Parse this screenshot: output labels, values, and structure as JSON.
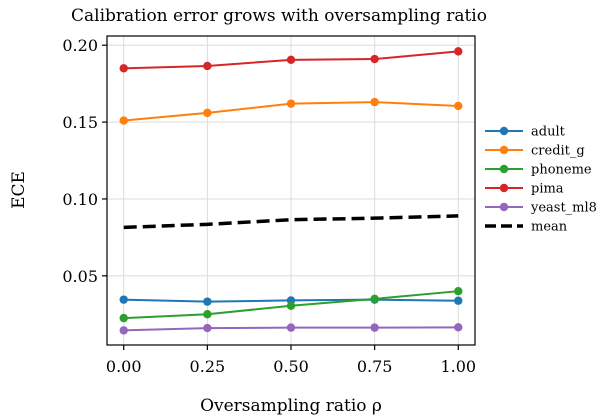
{
  "chart_data": {
    "type": "line",
    "title": "Calibration error grows with oversampling ratio",
    "xlabel": "Oversampling ratio ρ",
    "ylabel": "ECE",
    "x": [
      0.0,
      0.25,
      0.5,
      0.75,
      1.0
    ],
    "xlim": [
      -0.05,
      1.05
    ],
    "ylim": [
      0.005,
      0.206
    ],
    "xticks": [
      0.0,
      0.25,
      0.5,
      0.75,
      1.0
    ],
    "xtick_labels": [
      "0.00",
      "0.25",
      "0.50",
      "0.75",
      "1.00"
    ],
    "yticks": [
      0.05,
      0.1,
      0.15,
      0.2
    ],
    "ytick_labels": [
      "0.05",
      "0.10",
      "0.15",
      "0.20"
    ],
    "grid": true,
    "legend_position": "right",
    "series": [
      {
        "name": "adult",
        "color": "#1f77b4",
        "style": "solid-marker",
        "values": [
          0.0345,
          0.0332,
          0.034,
          0.0345,
          0.0338
        ]
      },
      {
        "name": "credit_g",
        "color": "#ff7f0e",
        "style": "solid-marker",
        "values": [
          0.151,
          0.156,
          0.162,
          0.163,
          0.1605
        ]
      },
      {
        "name": "phoneme",
        "color": "#2ca02c",
        "style": "solid-marker",
        "values": [
          0.0225,
          0.025,
          0.0305,
          0.035,
          0.04
        ]
      },
      {
        "name": "pima",
        "color": "#d62728",
        "style": "solid-marker",
        "values": [
          0.185,
          0.1865,
          0.1905,
          0.191,
          0.196
        ]
      },
      {
        "name": "yeast_ml8",
        "color": "#9467bd",
        "style": "solid-marker",
        "values": [
          0.0145,
          0.016,
          0.0163,
          0.0163,
          0.0165
        ]
      },
      {
        "name": "mean",
        "color": "#000000",
        "style": "dashed",
        "values": [
          0.0815,
          0.0835,
          0.0865,
          0.0875,
          0.089
        ]
      }
    ]
  }
}
